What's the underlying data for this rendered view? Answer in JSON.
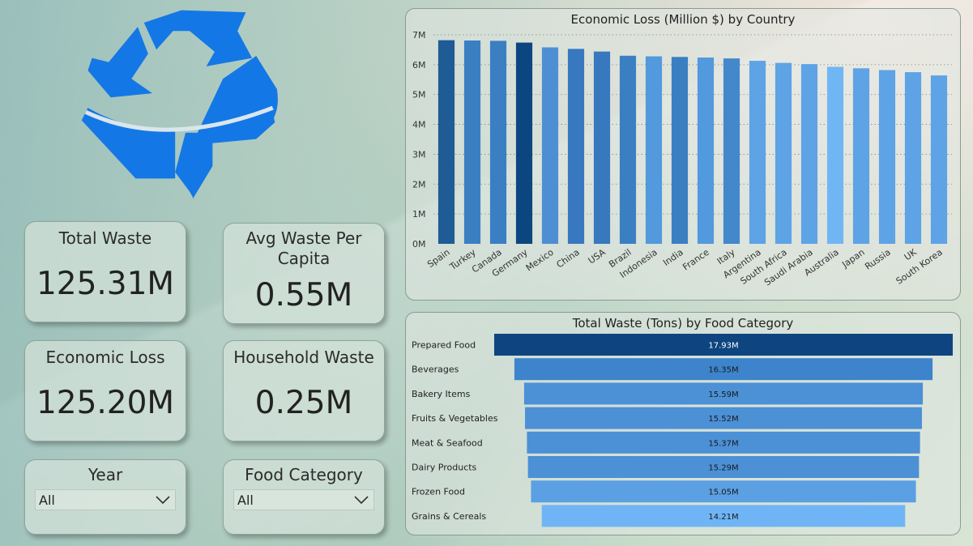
{
  "kpis": {
    "total_waste": {
      "title": "Total Waste",
      "value": "125.31M"
    },
    "avg_waste": {
      "title_line1": "Avg Waste Per",
      "title_line2": "Capita",
      "value": "0.55M"
    },
    "economic_loss": {
      "title": "Economic Loss",
      "value": "125.20M"
    },
    "household_waste": {
      "title": "Household Waste",
      "value": "0.25M"
    }
  },
  "slicers": {
    "year": {
      "title": "Year",
      "selected": "All"
    },
    "food_category": {
      "title": "Food Category",
      "selected": "All"
    }
  },
  "chart_data": [
    {
      "type": "bar",
      "title": "Economic Loss (Million $) by Country",
      "categories": [
        "Spain",
        "Turkey",
        "Canada",
        "Germany",
        "Mexico",
        "China",
        "USA",
        "Brazil",
        "Indonesia",
        "India",
        "France",
        "Italy",
        "Argentina",
        "South Africa",
        "Saudi Arabia",
        "Australia",
        "Japan",
        "Russia",
        "UK",
        "South Korea"
      ],
      "values": [
        6.82,
        6.81,
        6.8,
        6.74,
        6.58,
        6.53,
        6.44,
        6.3,
        6.28,
        6.26,
        6.24,
        6.21,
        6.13,
        6.06,
        6.02,
        5.93,
        5.88,
        5.82,
        5.75,
        5.64
      ],
      "ylim": [
        0,
        7
      ],
      "y_ticks": [
        "0M",
        "1M",
        "2M",
        "3M",
        "4M",
        "5M",
        "6M",
        "7M"
      ],
      "grid": true,
      "colors": [
        "#1f5b95",
        "#3b7fc3",
        "#3b7fc3",
        "#0c4680",
        "#4e8fd3",
        "#3878be",
        "#3878be",
        "#3b7fc3",
        "#5299dd",
        "#3b7fc3",
        "#5299dd",
        "#4488cc",
        "#5ea3e5",
        "#5ea3e5",
        "#5ea3e5",
        "#71b6f4",
        "#5ea3e5",
        "#5ea3e5",
        "#5ea3e5",
        "#5ea3e5"
      ]
    },
    {
      "type": "bar",
      "orientation": "funnel",
      "title": "Total Waste (Tons) by Food Category",
      "categories": [
        "Prepared Food",
        "Beverages",
        "Bakery Items",
        "Fruits & Vegetables",
        "Meat & Seafood",
        "Dairy Products",
        "Frozen Food",
        "Grains & Cereals"
      ],
      "values": [
        17.93,
        16.35,
        15.59,
        15.52,
        15.37,
        15.29,
        15.05,
        14.21
      ],
      "labels": [
        "17.93M",
        "16.35M",
        "15.59M",
        "15.52M",
        "15.37M",
        "15.29M",
        "15.05M",
        "14.21M"
      ],
      "colors": [
        "#0e4580",
        "#3d84cc",
        "#4c90d6",
        "#4c90d6",
        "#4c90d6",
        "#4c90d6",
        "#5ba0e2",
        "#6fb5f5"
      ]
    }
  ],
  "colors": {
    "icon": "#1477e6"
  }
}
